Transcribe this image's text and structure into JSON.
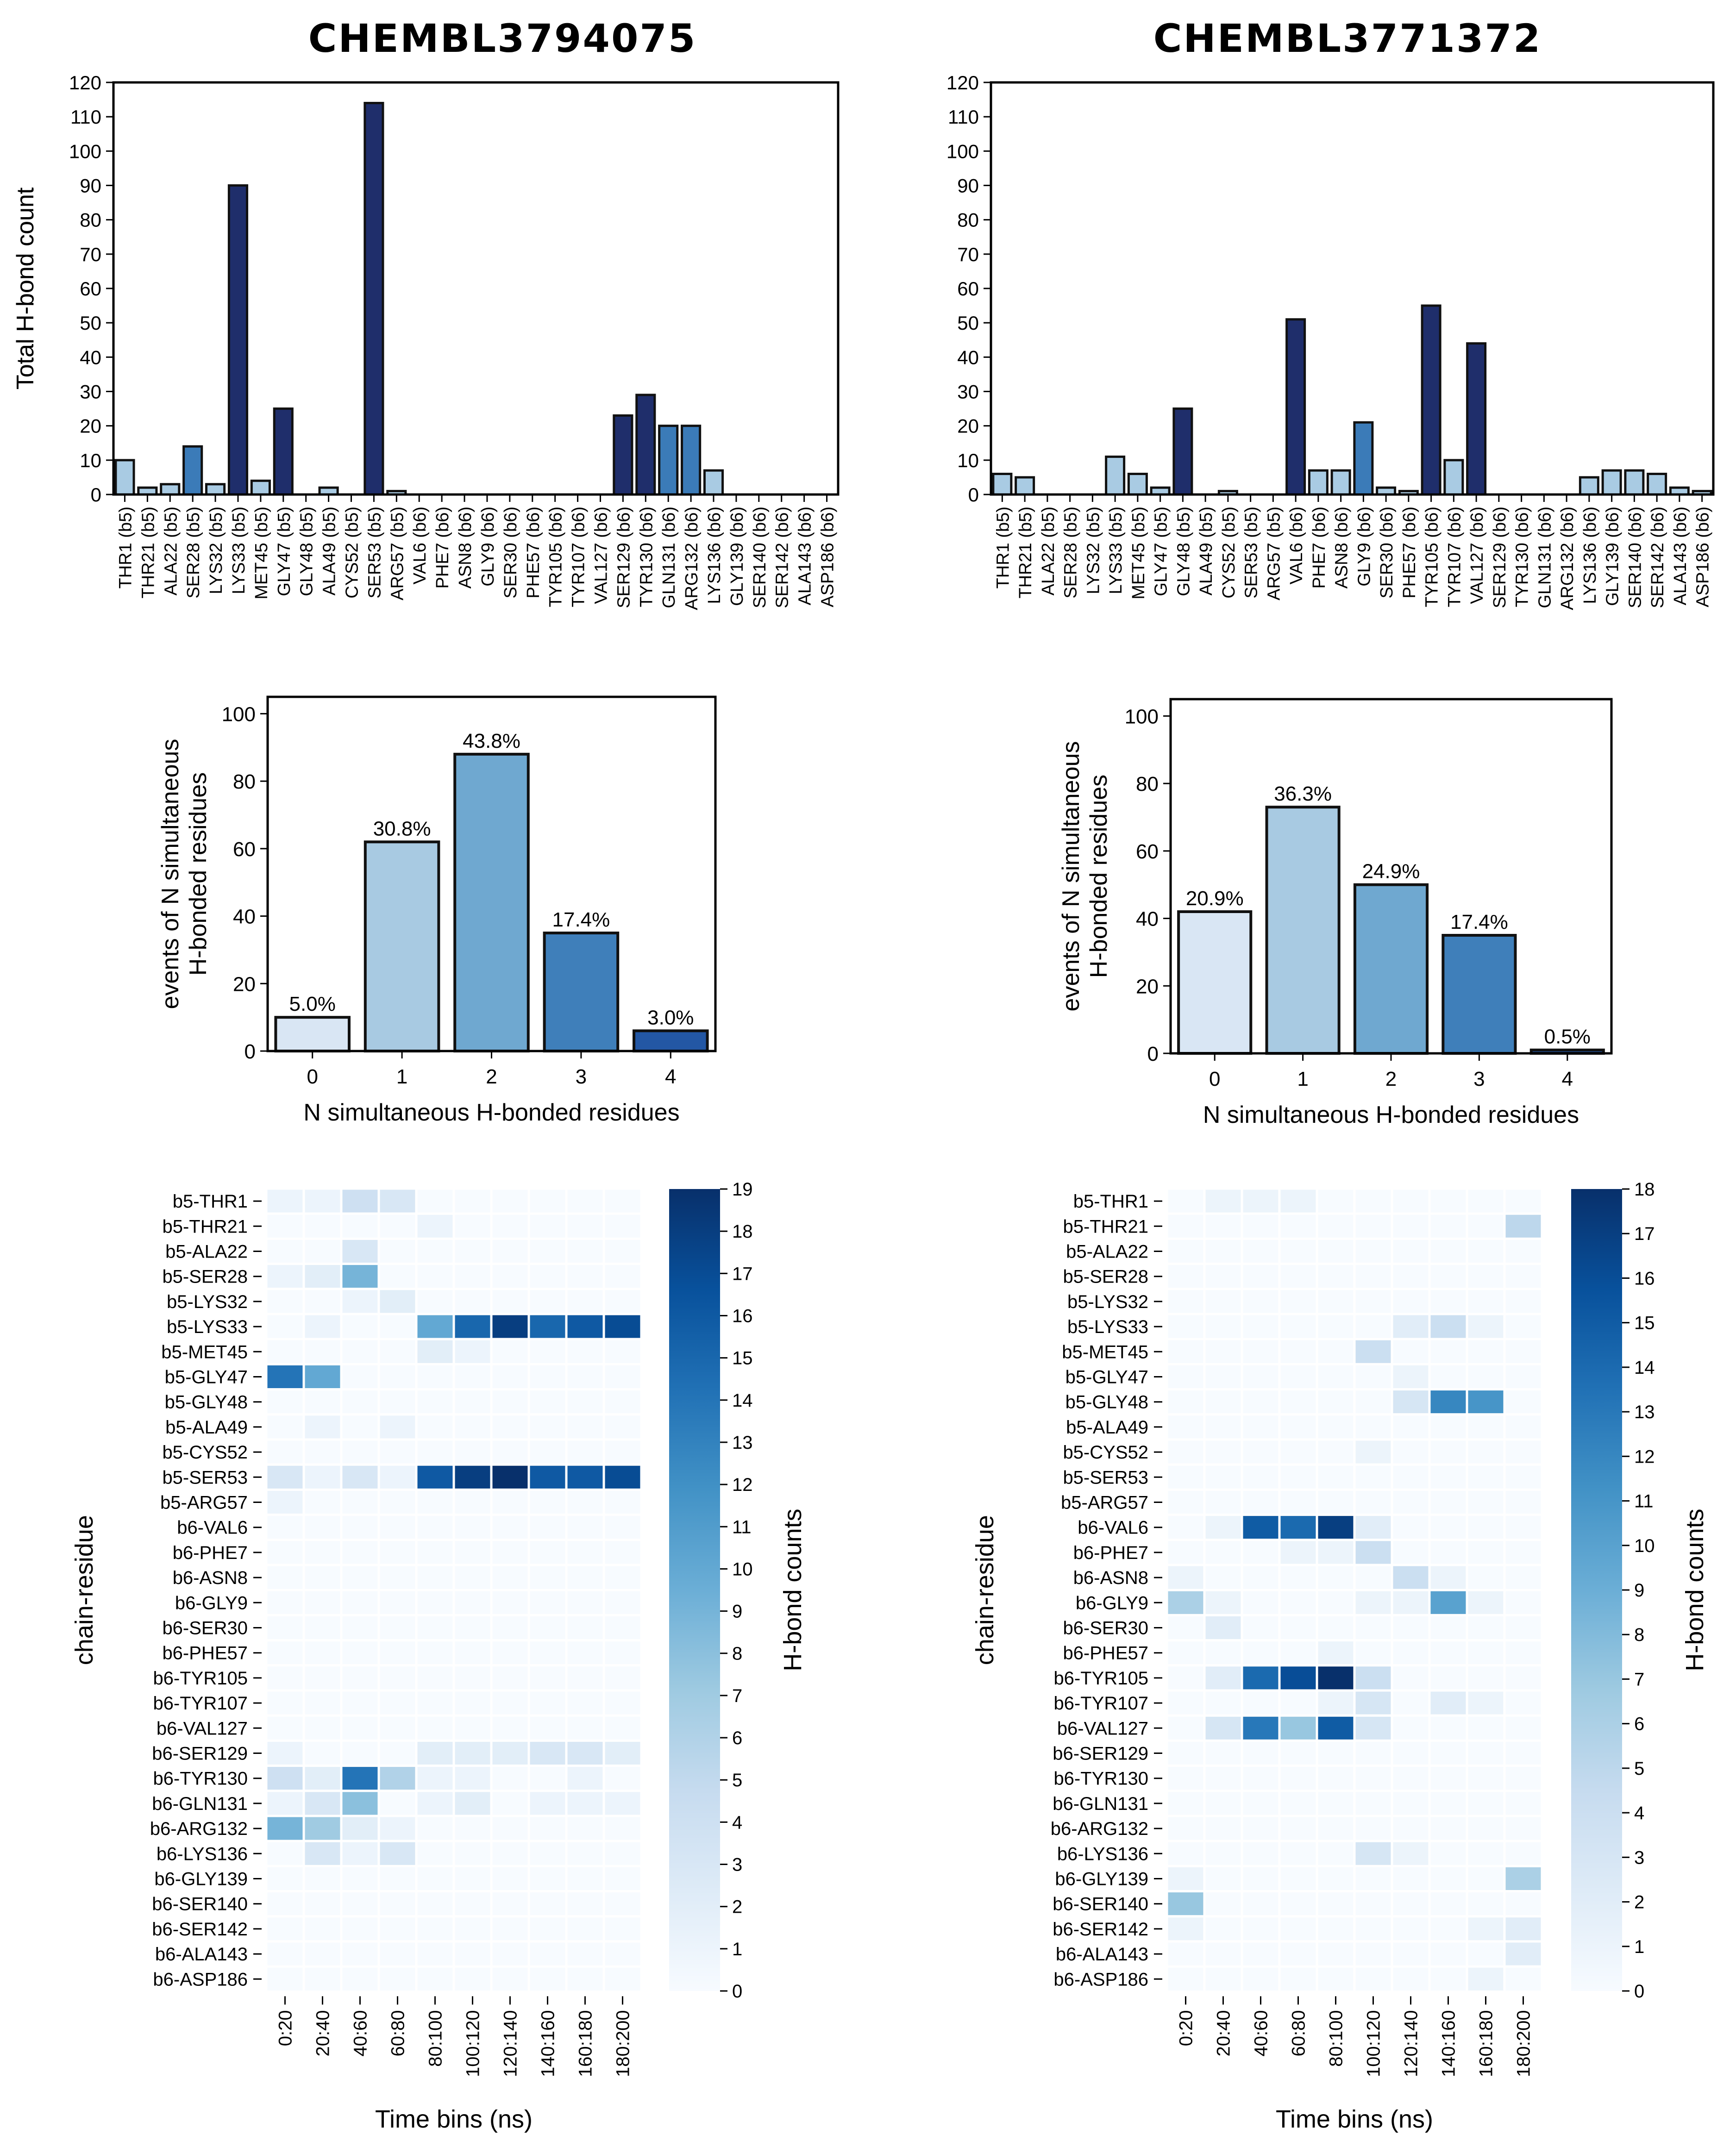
{
  "chart_data": [
    {
      "type": "bar",
      "panel": "left-top",
      "title": "CHEMBL3794075",
      "ylabel": "Total H-bond count",
      "ylim": [
        0,
        120
      ],
      "yticks": [
        0,
        10,
        20,
        30,
        40,
        50,
        60,
        70,
        80,
        90,
        100,
        110,
        120
      ],
      "categories": [
        "THR1 (b5)",
        "THR21 (b5)",
        "ALA22 (b5)",
        "SER28 (b5)",
        "LYS32 (b5)",
        "LYS33 (b5)",
        "MET45 (b5)",
        "GLY47 (b5)",
        "GLY48 (b5)",
        "ALA49 (b5)",
        "CYS52 (b5)",
        "SER53 (b5)",
        "ARG57 (b5)",
        "VAL6 (b6)",
        "PHE7 (b6)",
        "ASN8 (b6)",
        "GLY9 (b6)",
        "SER30 (b6)",
        "PHE57 (b6)",
        "TYR105 (b6)",
        "TYR107 (b6)",
        "VAL127 (b6)",
        "SER129 (b6)",
        "TYR130 (b6)",
        "GLN131 (b6)",
        "ARG132 (b6)",
        "LYS136 (b6)",
        "GLY139 (b6)",
        "SER140 (b6)",
        "SER142 (b6)",
        "ALA143 (b6)",
        "ASP186 (b6)"
      ],
      "values": [
        10,
        2,
        3,
        14,
        3,
        90,
        4,
        25,
        0,
        2,
        0,
        114,
        1,
        0,
        0,
        0,
        0,
        0,
        0,
        0,
        0,
        0,
        23,
        29,
        20,
        20,
        7,
        0,
        0,
        0,
        0,
        0
      ],
      "grid": false
    },
    {
      "type": "bar",
      "panel": "right-top",
      "title": "CHEMBL3771372",
      "ylabel": "Total H-bond count",
      "ylim": [
        0,
        120
      ],
      "yticks": [
        0,
        10,
        20,
        30,
        40,
        50,
        60,
        70,
        80,
        90,
        100,
        110,
        120
      ],
      "categories": [
        "THR1 (b5)",
        "THR21 (b5)",
        "ALA22 (b5)",
        "SER28 (b5)",
        "LYS32 (b5)",
        "LYS33 (b5)",
        "MET45 (b5)",
        "GLY47 (b5)",
        "GLY48 (b5)",
        "ALA49 (b5)",
        "CYS52 (b5)",
        "SER53 (b5)",
        "ARG57 (b5)",
        "VAL6 (b6)",
        "PHE7 (b6)",
        "ASN8 (b6)",
        "GLY9 (b6)",
        "SER30 (b6)",
        "PHE57 (b6)",
        "TYR105 (b6)",
        "TYR107 (b6)",
        "VAL127 (b6)",
        "SER129 (b6)",
        "TYR130 (b6)",
        "GLN131 (b6)",
        "ARG132 (b6)",
        "LYS136 (b6)",
        "GLY139 (b6)",
        "SER140 (b6)",
        "SER142 (b6)",
        "ALA143 (b6)",
        "ASP186 (b6)"
      ],
      "values": [
        6,
        5,
        0,
        0,
        0,
        11,
        6,
        2,
        25,
        0,
        1,
        0,
        0,
        51,
        7,
        7,
        21,
        2,
        1,
        55,
        10,
        44,
        0,
        0,
        0,
        0,
        5,
        7,
        7,
        6,
        2,
        1
      ],
      "grid": false
    },
    {
      "type": "bar",
      "panel": "left-middle",
      "xlabel": "N simultaneous H-bonded residues",
      "ylabel": "events of N simultaneous\nH-bonded residues",
      "ylim": [
        0,
        105
      ],
      "yticks": [
        0,
        20,
        40,
        60,
        80,
        100
      ],
      "categories": [
        "0",
        "1",
        "2",
        "3",
        "4"
      ],
      "values": [
        10,
        62,
        88,
        35,
        6
      ],
      "data_labels": [
        "5.0%",
        "30.8%",
        "43.8%",
        "17.4%",
        "3.0%"
      ],
      "colors": [
        "#d9e6f4",
        "#a8cae2",
        "#6fa8d0",
        "#3f7fba",
        "#2357a4"
      ]
    },
    {
      "type": "bar",
      "panel": "right-middle",
      "xlabel": "N simultaneous H-bonded residues",
      "ylabel": "events of N simultaneous\nH-bonded residues",
      "ylim": [
        0,
        105
      ],
      "yticks": [
        0,
        20,
        40,
        60,
        80,
        100
      ],
      "categories": [
        "0",
        "1",
        "2",
        "3",
        "4"
      ],
      "values": [
        42,
        73,
        50,
        35,
        1
      ],
      "data_labels": [
        "20.9%",
        "36.3%",
        "24.9%",
        "17.4%",
        "0.5%"
      ],
      "colors": [
        "#d9e6f4",
        "#a8cae2",
        "#6fa8d0",
        "#3f7fba",
        "#2357a4"
      ]
    },
    {
      "type": "heatmap",
      "panel": "left-bottom",
      "xlabel": "Time bins (ns)",
      "ylabel": "chain-residue",
      "colorbar_label": "H-bond counts",
      "colorbar_range": [
        0,
        19
      ],
      "colormap": "Blues",
      "x": [
        "0:20",
        "20:40",
        "40:60",
        "60:80",
        "80:100",
        "100:120",
        "120:140",
        "140:160",
        "160:180",
        "180:200"
      ],
      "y": [
        "b5-THR1",
        "b5-THR21",
        "b5-ALA22",
        "b5-SER28",
        "b5-LYS32",
        "b5-LYS33",
        "b5-MET45",
        "b5-GLY47",
        "b5-GLY48",
        "b5-ALA49",
        "b5-CYS52",
        "b5-SER53",
        "b5-ARG57",
        "b6-VAL6",
        "b6-PHE7",
        "b6-ASN8",
        "b6-GLY9",
        "b6-SER30",
        "b6-PHE57",
        "b6-TYR105",
        "b6-TYR107",
        "b6-VAL127",
        "b6-SER129",
        "b6-TYR130",
        "b6-GLN131",
        "b6-ARG132",
        "b6-LYS136",
        "b6-GLY139",
        "b6-SER140",
        "b6-SER142",
        "b6-ALA143",
        "b6-ASP186"
      ],
      "values": [
        [
          1,
          1,
          4,
          3,
          0,
          0,
          0,
          0,
          0,
          0
        ],
        [
          0,
          0,
          0,
          0,
          1,
          0,
          0,
          0,
          0,
          0
        ],
        [
          0,
          0,
          3,
          0,
          0,
          0,
          0,
          0,
          0,
          0
        ],
        [
          1,
          2,
          9,
          0,
          0,
          0,
          0,
          0,
          0,
          0
        ],
        [
          0,
          0,
          1,
          2,
          0,
          0,
          0,
          0,
          0,
          0
        ],
        [
          0,
          1,
          0,
          0,
          10,
          15,
          18,
          15,
          16,
          17
        ],
        [
          0,
          0,
          0,
          0,
          2,
          1,
          0,
          0,
          0,
          0
        ],
        [
          14,
          10,
          0,
          0,
          0,
          0,
          0,
          0,
          0,
          0
        ],
        [
          0,
          0,
          0,
          0,
          0,
          0,
          0,
          0,
          0,
          0
        ],
        [
          0,
          1,
          0,
          1,
          0,
          0,
          0,
          0,
          0,
          0
        ],
        [
          0,
          0,
          0,
          0,
          0,
          0,
          0,
          0,
          0,
          0
        ],
        [
          3,
          1,
          3,
          1,
          16,
          18,
          19,
          16,
          16,
          17
        ],
        [
          1,
          0,
          0,
          0,
          0,
          0,
          0,
          0,
          0,
          0
        ],
        [
          0,
          0,
          0,
          0,
          0,
          0,
          0,
          0,
          0,
          0
        ],
        [
          0,
          0,
          0,
          0,
          0,
          0,
          0,
          0,
          0,
          0
        ],
        [
          0,
          0,
          0,
          0,
          0,
          0,
          0,
          0,
          0,
          0
        ],
        [
          0,
          0,
          0,
          0,
          0,
          0,
          0,
          0,
          0,
          0
        ],
        [
          0,
          0,
          0,
          0,
          0,
          0,
          0,
          0,
          0,
          0
        ],
        [
          0,
          0,
          0,
          0,
          0,
          0,
          0,
          0,
          0,
          0
        ],
        [
          0,
          0,
          0,
          0,
          0,
          0,
          0,
          0,
          0,
          0
        ],
        [
          0,
          0,
          0,
          0,
          0,
          0,
          0,
          0,
          0,
          0
        ],
        [
          0,
          0,
          0,
          0,
          0,
          0,
          0,
          0,
          0,
          0
        ],
        [
          1,
          0,
          0,
          0,
          2,
          2,
          2,
          3,
          3,
          2
        ],
        [
          4,
          2,
          14,
          6,
          1,
          1,
          0,
          0,
          1,
          0
        ],
        [
          1,
          3,
          8,
          0,
          1,
          2,
          0,
          1,
          1,
          1
        ],
        [
          9,
          7,
          2,
          1,
          0,
          0,
          0,
          0,
          0,
          0
        ],
        [
          0,
          3,
          1,
          3,
          0,
          0,
          0,
          0,
          0,
          0
        ],
        [
          0,
          0,
          0,
          0,
          0,
          0,
          0,
          0,
          0,
          0
        ],
        [
          0,
          0,
          0,
          0,
          0,
          0,
          0,
          0,
          0,
          0
        ],
        [
          0,
          0,
          0,
          0,
          0,
          0,
          0,
          0,
          0,
          0
        ],
        [
          0,
          0,
          0,
          0,
          0,
          0,
          0,
          0,
          0,
          0
        ],
        [
          0,
          0,
          0,
          0,
          0,
          0,
          0,
          0,
          0,
          0
        ]
      ]
    },
    {
      "type": "heatmap",
      "panel": "right-bottom",
      "xlabel": "Time bins (ns)",
      "ylabel": "chain-residue",
      "colorbar_label": "H-bond counts",
      "colorbar_range": [
        0,
        18
      ],
      "colormap": "Blues",
      "x": [
        "0:20",
        "20:40",
        "40:60",
        "60:80",
        "80:100",
        "100:120",
        "120:140",
        "140:160",
        "160:180",
        "180:200"
      ],
      "y": [
        "b5-THR1",
        "b5-THR21",
        "b5-ALA22",
        "b5-SER28",
        "b5-LYS32",
        "b5-LYS33",
        "b5-MET45",
        "b5-GLY47",
        "b5-GLY48",
        "b5-ALA49",
        "b5-CYS52",
        "b5-SER53",
        "b5-ARG57",
        "b6-VAL6",
        "b6-PHE7",
        "b6-ASN8",
        "b6-GLY9",
        "b6-SER30",
        "b6-PHE57",
        "b6-TYR105",
        "b6-TYR107",
        "b6-VAL127",
        "b6-SER129",
        "b6-TYR130",
        "b6-GLN131",
        "b6-ARG132",
        "b6-LYS136",
        "b6-GLY139",
        "b6-SER140",
        "b6-SER142",
        "b6-ALA143",
        "b6-ASP186"
      ],
      "values": [
        [
          0,
          1,
          1,
          1,
          0,
          0,
          0,
          0,
          0,
          0
        ],
        [
          0,
          0,
          0,
          0,
          0,
          0,
          0,
          0,
          0,
          5
        ],
        [
          0,
          0,
          0,
          0,
          0,
          0,
          0,
          0,
          0,
          0
        ],
        [
          0,
          0,
          0,
          0,
          0,
          0,
          0,
          0,
          0,
          0
        ],
        [
          0,
          0,
          0,
          0,
          0,
          0,
          0,
          0,
          0,
          0
        ],
        [
          0,
          0,
          0,
          0,
          0,
          0,
          2,
          4,
          1,
          0
        ],
        [
          0,
          0,
          0,
          0,
          0,
          4,
          0,
          0,
          0,
          0
        ],
        [
          0,
          0,
          0,
          0,
          0,
          0,
          1,
          0,
          0,
          0
        ],
        [
          0,
          0,
          0,
          0,
          0,
          0,
          3,
          12,
          11,
          0
        ],
        [
          0,
          0,
          0,
          0,
          0,
          0,
          0,
          0,
          0,
          0
        ],
        [
          0,
          0,
          0,
          0,
          0,
          1,
          0,
          0,
          0,
          0
        ],
        [
          0,
          0,
          0,
          0,
          0,
          0,
          0,
          0,
          0,
          0
        ],
        [
          0,
          0,
          0,
          0,
          0,
          0,
          0,
          0,
          0,
          0
        ],
        [
          0,
          1,
          15,
          14,
          17,
          2,
          0,
          0,
          0,
          0
        ],
        [
          0,
          0,
          0,
          1,
          1,
          4,
          0,
          0,
          0,
          0
        ],
        [
          1,
          0,
          0,
          0,
          0,
          0,
          4,
          1,
          0,
          0
        ],
        [
          6,
          1,
          0,
          0,
          0,
          1,
          1,
          10,
          1,
          0
        ],
        [
          0,
          2,
          0,
          0,
          0,
          0,
          0,
          0,
          0,
          0
        ],
        [
          0,
          0,
          0,
          0,
          1,
          0,
          0,
          0,
          0,
          0
        ],
        [
          0,
          2,
          14,
          16,
          18,
          4,
          0,
          0,
          0,
          0
        ],
        [
          0,
          0,
          0,
          0,
          1,
          3,
          0,
          2,
          1,
          0
        ],
        [
          0,
          3,
          13,
          7,
          15,
          3,
          0,
          0,
          0,
          0
        ],
        [
          0,
          0,
          0,
          0,
          0,
          0,
          0,
          0,
          0,
          0
        ],
        [
          0,
          0,
          0,
          0,
          0,
          0,
          0,
          0,
          0,
          0
        ],
        [
          0,
          0,
          0,
          0,
          0,
          0,
          0,
          0,
          0,
          0
        ],
        [
          0,
          0,
          0,
          0,
          0,
          0,
          0,
          0,
          0,
          0
        ],
        [
          0,
          0,
          0,
          0,
          0,
          3,
          1,
          0,
          0,
          0
        ],
        [
          1,
          0,
          0,
          0,
          0,
          0,
          0,
          0,
          0,
          6
        ],
        [
          7,
          0,
          0,
          0,
          0,
          0,
          0,
          0,
          0,
          0
        ],
        [
          1,
          0,
          0,
          0,
          0,
          0,
          0,
          0,
          1,
          2
        ],
        [
          0,
          0,
          0,
          0,
          0,
          0,
          0,
          0,
          0,
          2
        ],
        [
          0,
          0,
          0,
          0,
          0,
          0,
          0,
          0,
          1,
          0
        ]
      ]
    }
  ]
}
